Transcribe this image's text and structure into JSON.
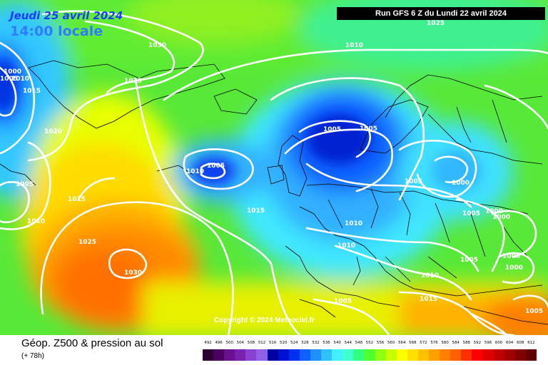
{
  "header": {
    "date": "Jeudi 25 avril 2024",
    "time": "14:00 locale",
    "run": "Run GFS 6 Z du Lundi 22 avril 2024"
  },
  "copyright": "Copyright © 2024 Meteociel.fr",
  "footer": {
    "product": "Géop. Z500 & pression au sol",
    "lead": "(+ 78h)"
  },
  "scale": {
    "ticks": [
      "492",
      "496",
      "500",
      "504",
      "508",
      "512",
      "516",
      "520",
      "524",
      "528",
      "532",
      "536",
      "540",
      "544",
      "548",
      "552",
      "556",
      "560",
      "564",
      "568",
      "572",
      "576",
      "580",
      "584",
      "588",
      "592",
      "596",
      "600",
      "604",
      "608",
      "612"
    ],
    "colors": [
      "#2a0030",
      "#4a0060",
      "#6a1090",
      "#7a20b0",
      "#8a40d0",
      "#9060e8",
      "#0000a0",
      "#0010d0",
      "#0030f0",
      "#1060ff",
      "#2090ff",
      "#30c0ff",
      "#40f0ff",
      "#40ffd0",
      "#30ff80",
      "#50ff30",
      "#90ff10",
      "#c8ff00",
      "#ffff00",
      "#ffe000",
      "#ffc000",
      "#ffa000",
      "#ff8000",
      "#ff6000",
      "#ff3000",
      "#ff0000",
      "#e00000",
      "#c00000",
      "#a00000",
      "#800000",
      "#600000"
    ]
  },
  "isobars": [
    "1030",
    "1025",
    "1020",
    "1015",
    "1010",
    "1005",
    "1000",
    "1005",
    "1010",
    "1005",
    "1010",
    "1005",
    "1015",
    "1025",
    "1030",
    "1015",
    "1010",
    "1005",
    "1005",
    "1010",
    "1005",
    "1000",
    "1005",
    "1000",
    "1000",
    "1005",
    "1005",
    "1000",
    "1010",
    "1015",
    "1005",
    "1010",
    "1005",
    "1025"
  ]
}
